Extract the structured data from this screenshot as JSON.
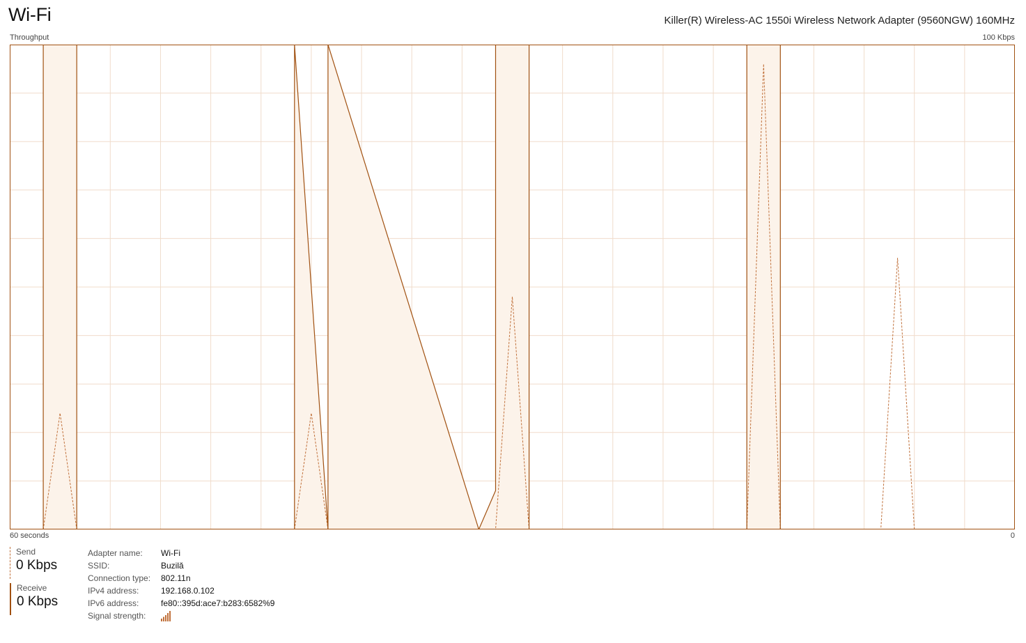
{
  "header": {
    "title": "Wi-Fi",
    "adapter_model": "Killer(R) Wireless-AC 1550i Wireless Network Adapter (9560NGW) 160MHz"
  },
  "graph": {
    "label_throughput": "Throughput",
    "label_max": "100 Kbps",
    "label_time": "60 seconds",
    "label_min": "0"
  },
  "chart_data": {
    "type": "line",
    "x_label": "60 seconds",
    "y_label": "Throughput",
    "ylim": [
      0,
      100
    ],
    "y_unit": "Kbps",
    "x_range_seconds": [
      60,
      0
    ],
    "grid": true,
    "series": [
      {
        "name": "Send",
        "style": "dashed",
        "color": "#c0703a",
        "points": [
          [
            58,
            0
          ],
          [
            57,
            24
          ],
          [
            56,
            0
          ],
          [
            43,
            0
          ],
          [
            42,
            24
          ],
          [
            41,
            0
          ],
          [
            31,
            0
          ],
          [
            30,
            48
          ],
          [
            29,
            0
          ],
          [
            16,
            0
          ],
          [
            15,
            96
          ],
          [
            14,
            0
          ],
          [
            8,
            0
          ],
          [
            7,
            56
          ],
          [
            6,
            0
          ]
        ]
      },
      {
        "name": "Receive",
        "style": "solid",
        "color": "#a05010",
        "points": [
          [
            58,
            0
          ],
          [
            58,
            100
          ],
          [
            56,
            100
          ],
          [
            56,
            0
          ],
          [
            43,
            0
          ],
          [
            43,
            100
          ],
          [
            41,
            0
          ],
          [
            41,
            100
          ],
          [
            32,
            0
          ],
          [
            31,
            8
          ],
          [
            31,
            100
          ],
          [
            29,
            100
          ],
          [
            29,
            0
          ],
          [
            16,
            0
          ],
          [
            16,
            100
          ],
          [
            14,
            100
          ],
          [
            14,
            0
          ]
        ]
      }
    ]
  },
  "stats": {
    "send_label": "Send",
    "send_value": "0 Kbps",
    "receive_label": "Receive",
    "receive_value": "0 Kbps"
  },
  "details": {
    "adapter_name_label": "Adapter name:",
    "adapter_name": "Wi-Fi",
    "ssid_label": "SSID:",
    "ssid": "Buzilă",
    "connection_type_label": "Connection type:",
    "connection_type": "802.11n",
    "ipv4_label": "IPv4 address:",
    "ipv4": "192.168.0.102",
    "ipv6_label": "IPv6 address:",
    "ipv6": "fe80::395d:ace7:b283:6582%9",
    "signal_label": "Signal strength:",
    "signal_icon": "signal-strength-icon"
  },
  "colors": {
    "accent": "#a05010",
    "send": "#c0703a",
    "fill": "#fcf3ea",
    "grid": "#f0dccb"
  }
}
